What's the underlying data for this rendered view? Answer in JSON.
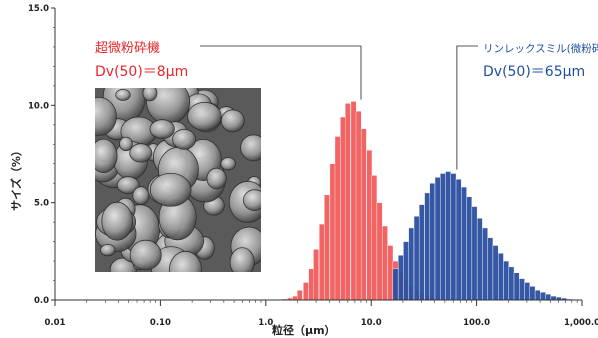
{
  "chart_data": {
    "type": "bar",
    "xscale": "log",
    "xlim": [
      0.01,
      1000.0
    ],
    "ylim": [
      0.0,
      15.0
    ],
    "xlabel": "粒径（μm）",
    "ylabel": "サイズ（%）",
    "x_ticks": [
      "0.01",
      "0.10",
      "1.0",
      "10.0",
      "100.0",
      "1,000.0"
    ],
    "y_ticks": [
      "0.0",
      "5.0",
      "10.0",
      "15.0"
    ],
    "grid": false,
    "annotations": [
      {
        "name": "超微粉砕機",
        "dv": "Dv(50)＝8μm",
        "color": "#e8272a",
        "points_to": 8.0
      },
      {
        "name": "リンレックスミル(微粉砕機",
        "dv": "Dv(50)＝65μm",
        "color": "#1f4f9e",
        "points_to": 65.0
      }
    ],
    "inset_image": "SEM micrograph of powder particles",
    "series": [
      {
        "color": "#f04848",
        "x": [
          1.5,
          1.7,
          1.9,
          2.1,
          2.4,
          2.7,
          3.0,
          3.4,
          3.8,
          4.3,
          4.8,
          5.4,
          6.0,
          6.8,
          7.6,
          8.5,
          9.6,
          10.7,
          12.0,
          13.5,
          15.2,
          17.0,
          19.1,
          21.4,
          24.0,
          27.0,
          30.2,
          34.0,
          38.0,
          42.7,
          47.9
        ],
        "values": [
          0.05,
          0.1,
          0.2,
          0.5,
          0.9,
          1.6,
          2.6,
          3.9,
          5.4,
          7.0,
          8.4,
          9.4,
          10.1,
          10.2,
          9.7,
          8.8,
          7.7,
          6.4,
          5.0,
          3.8,
          2.8,
          2.0,
          1.4,
          1.0,
          0.7,
          0.5,
          0.35,
          0.25,
          0.15,
          0.08,
          0.03
        ]
      },
      {
        "color": "#2a4fa0",
        "x": [
          17.0,
          19.1,
          21.4,
          24.0,
          27.0,
          30.2,
          34.0,
          38.0,
          42.7,
          47.9,
          53.7,
          60.3,
          67.6,
          75.9,
          85.1,
          95.5,
          107.2,
          120.2,
          134.9,
          151.4,
          169.8,
          190.5,
          213.8,
          239.9,
          269.2,
          302.0,
          338.8,
          380.2,
          426.6,
          478.6,
          537.0,
          602.6,
          676.1,
          758.6,
          851.1
        ],
        "values": [
          1.6,
          2.3,
          3.0,
          3.7,
          4.3,
          4.9,
          5.5,
          6.0,
          6.3,
          6.5,
          6.6,
          6.5,
          6.2,
          5.8,
          5.3,
          4.8,
          4.2,
          3.7,
          3.2,
          2.8,
          2.4,
          2.0,
          1.7,
          1.4,
          1.1,
          0.9,
          0.7,
          0.5,
          0.4,
          0.3,
          0.2,
          0.15,
          0.1,
          0.05,
          0.02
        ]
      }
    ]
  }
}
